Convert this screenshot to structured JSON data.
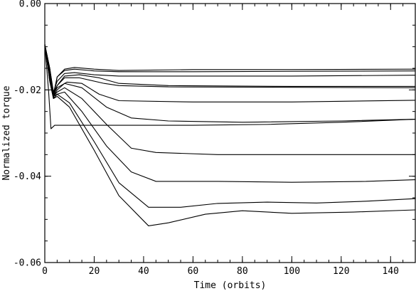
{
  "chart_data": {
    "type": "line",
    "title": "",
    "xlabel": "Time (orbits)",
    "ylabel": "Normalized torque",
    "xlim": [
      0,
      150
    ],
    "ylim": [
      -0.06,
      0.0
    ],
    "x_ticks": [
      0,
      20,
      40,
      60,
      80,
      100,
      120,
      140
    ],
    "x_tick_labels": [
      "0",
      "20",
      "40",
      "60",
      "80",
      "100",
      "120",
      "140"
    ],
    "y_ticks": [
      0.0,
      -0.02,
      -0.04,
      -0.06
    ],
    "y_tick_labels": [
      "0.00",
      "-0.02",
      "-0.04",
      "-0.06"
    ],
    "x_minor_step": 5,
    "y_minor_step": 0.005,
    "grid": false,
    "legend": "none",
    "line_color": "#000000",
    "series": [
      {
        "points": [
          [
            0,
            -0.0095
          ],
          [
            2,
            -0.015
          ],
          [
            3.5,
            -0.022
          ],
          [
            5,
            -0.017
          ],
          [
            8,
            -0.0152
          ],
          [
            12,
            -0.0148
          ],
          [
            20,
            -0.0152
          ],
          [
            30,
            -0.0155
          ],
          [
            60,
            -0.0153
          ],
          [
            100,
            -0.0153
          ],
          [
            150,
            -0.0152
          ]
        ]
      },
      {
        "points": [
          [
            0,
            -0.0095
          ],
          [
            2,
            -0.015
          ],
          [
            3.5,
            -0.021
          ],
          [
            5,
            -0.017
          ],
          [
            8,
            -0.0155
          ],
          [
            12,
            -0.0152
          ],
          [
            20,
            -0.0156
          ],
          [
            30,
            -0.0158
          ],
          [
            60,
            -0.0158
          ],
          [
            100,
            -0.0157
          ],
          [
            150,
            -0.0156
          ]
        ]
      },
      {
        "points": [
          [
            0,
            -0.0095
          ],
          [
            2,
            -0.015
          ],
          [
            3.5,
            -0.0205
          ],
          [
            5,
            -0.018
          ],
          [
            8,
            -0.0162
          ],
          [
            12,
            -0.016
          ],
          [
            20,
            -0.0165
          ],
          [
            30,
            -0.0168
          ],
          [
            60,
            -0.0168
          ],
          [
            100,
            -0.0168
          ],
          [
            150,
            -0.0166
          ]
        ]
      },
      {
        "points": [
          [
            0,
            -0.0095
          ],
          [
            2,
            -0.016
          ],
          [
            3.5,
            -0.0215
          ],
          [
            5,
            -0.019
          ],
          [
            8,
            -0.0168
          ],
          [
            14,
            -0.0165
          ],
          [
            22,
            -0.0172
          ],
          [
            30,
            -0.0185
          ],
          [
            50,
            -0.019
          ],
          [
            100,
            -0.0192
          ],
          [
            150,
            -0.0192
          ]
        ]
      },
      {
        "points": [
          [
            0,
            -0.0095
          ],
          [
            2,
            -0.016
          ],
          [
            3.5,
            -0.021
          ],
          [
            5,
            -0.019
          ],
          [
            8,
            -0.0172
          ],
          [
            14,
            -0.0172
          ],
          [
            24,
            -0.0185
          ],
          [
            30,
            -0.019
          ],
          [
            50,
            -0.0193
          ],
          [
            100,
            -0.0194
          ],
          [
            150,
            -0.0195
          ]
        ]
      },
      {
        "points": [
          [
            0,
            -0.0095
          ],
          [
            2,
            -0.0165
          ],
          [
            3.5,
            -0.021
          ],
          [
            5,
            -0.0195
          ],
          [
            9,
            -0.0182
          ],
          [
            15,
            -0.0185
          ],
          [
            22,
            -0.021
          ],
          [
            30,
            -0.0225
          ],
          [
            60,
            -0.0228
          ],
          [
            100,
            -0.0228
          ],
          [
            150,
            -0.0224
          ]
        ]
      },
      {
        "points": [
          [
            0,
            -0.0095
          ],
          [
            2,
            -0.017
          ],
          [
            3.5,
            -0.0215
          ],
          [
            5,
            -0.02
          ],
          [
            8,
            -0.0185
          ],
          [
            15,
            -0.0195
          ],
          [
            25,
            -0.024
          ],
          [
            35,
            -0.0265
          ],
          [
            50,
            -0.0272
          ],
          [
            80,
            -0.0275
          ],
          [
            120,
            -0.0272
          ],
          [
            150,
            -0.0268
          ]
        ]
      },
      {
        "points": [
          [
            0,
            -0.0095
          ],
          [
            1.5,
            -0.02
          ],
          [
            2.5,
            -0.029
          ],
          [
            4,
            -0.0282
          ],
          [
            10,
            -0.0282
          ],
          [
            30,
            -0.0282
          ],
          [
            60,
            -0.0282
          ],
          [
            90,
            -0.028
          ],
          [
            120,
            -0.0275
          ],
          [
            150,
            -0.0268
          ]
        ]
      },
      {
        "points": [
          [
            0,
            -0.0095
          ],
          [
            2,
            -0.017
          ],
          [
            3.5,
            -0.0215
          ],
          [
            5,
            -0.0205
          ],
          [
            8,
            -0.0195
          ],
          [
            15,
            -0.022
          ],
          [
            25,
            -0.028
          ],
          [
            35,
            -0.0335
          ],
          [
            45,
            -0.0345
          ],
          [
            70,
            -0.035
          ],
          [
            100,
            -0.035
          ],
          [
            130,
            -0.035
          ],
          [
            150,
            -0.035
          ]
        ]
      },
      {
        "points": [
          [
            0,
            -0.0095
          ],
          [
            2,
            -0.0175
          ],
          [
            3.5,
            -0.0215
          ],
          [
            5,
            -0.021
          ],
          [
            8,
            -0.0205
          ],
          [
            15,
            -0.025
          ],
          [
            25,
            -0.033
          ],
          [
            35,
            -0.039
          ],
          [
            45,
            -0.0412
          ],
          [
            70,
            -0.0412
          ],
          [
            100,
            -0.0414
          ],
          [
            130,
            -0.0412
          ],
          [
            150,
            -0.0408
          ]
        ]
      },
      {
        "points": [
          [
            0,
            -0.0095
          ],
          [
            2,
            -0.018
          ],
          [
            3.5,
            -0.022
          ],
          [
            5,
            -0.021
          ],
          [
            10,
            -0.023
          ],
          [
            20,
            -0.032
          ],
          [
            30,
            -0.0415
          ],
          [
            42,
            -0.0472
          ],
          [
            55,
            -0.0472
          ],
          [
            70,
            -0.0463
          ],
          [
            90,
            -0.046
          ],
          [
            110,
            -0.0462
          ],
          [
            130,
            -0.0458
          ],
          [
            150,
            -0.0452
          ]
        ]
      },
      {
        "points": [
          [
            0,
            -0.0095
          ],
          [
            2,
            -0.018
          ],
          [
            3.5,
            -0.022
          ],
          [
            5,
            -0.0215
          ],
          [
            10,
            -0.024
          ],
          [
            20,
            -0.034
          ],
          [
            30,
            -0.0445
          ],
          [
            42,
            -0.0515
          ],
          [
            50,
            -0.0508
          ],
          [
            65,
            -0.0488
          ],
          [
            80,
            -0.048
          ],
          [
            100,
            -0.0486
          ],
          [
            125,
            -0.0483
          ],
          [
            150,
            -0.0478
          ]
        ]
      }
    ]
  }
}
